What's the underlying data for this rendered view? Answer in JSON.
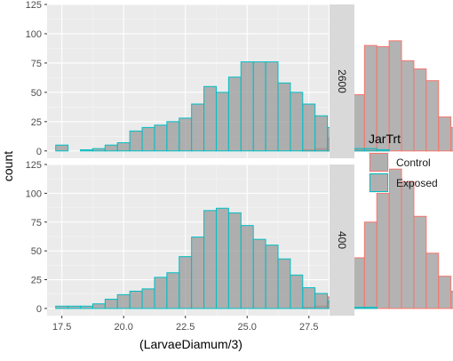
{
  "chart_data": {
    "type": "histogram",
    "xlabel": "(LarvaeDiamum/3)",
    "ylabel": "count",
    "xlim": [
      16.9,
      28.3
    ],
    "ylim": [
      -6.25,
      125
    ],
    "x_ticks": [
      17.5,
      20.0,
      22.5,
      25.0,
      27.5
    ],
    "x_tick_labels": [
      "17.5",
      "20.0",
      "22.5",
      "25.0",
      "27.5"
    ],
    "y_ticks": [
      0,
      25,
      50,
      75,
      100,
      125
    ],
    "y_tick_labels": [
      "0",
      "25",
      "50",
      "75",
      "100",
      "125"
    ],
    "bin_start": 17.25,
    "bin_width": 0.5,
    "panel_bg": "#ebebeb",
    "strip_bg": "#d9d9d9",
    "bar_fill": "#999999",
    "legend": {
      "title": "JarTrt",
      "entries": [
        {
          "label": "Control",
          "color": "#f8766d"
        },
        {
          "label": "Exposed",
          "color": "#00bfc4"
        }
      ]
    },
    "panels": [
      {
        "strip": "2600",
        "series": [
          {
            "name": "Control",
            "values": [
              0,
              0,
              0,
              0,
              0,
              0,
              0,
              0,
              0,
              0,
              0,
              0,
              0,
              0,
              0,
              0,
              0,
              0,
              0,
              0,
              1,
              2,
              11,
              13,
              48,
              90,
              89,
              94,
              77,
              70,
              60,
              29,
              20,
              7,
              1,
              1
            ]
          },
          {
            "name": "Exposed",
            "values": [
              5,
              0,
              1,
              2,
              5,
              7,
              17,
              20,
              22,
              25,
              28,
              40,
              55,
              50,
              63,
              76,
              76,
              76,
              58,
              50,
              40,
              30,
              20,
              15,
              2,
              2,
              1,
              0,
              0,
              0,
              0,
              0,
              0,
              0,
              0,
              0
            ]
          }
        ]
      },
      {
        "strip": "400",
        "series": [
          {
            "name": "Control",
            "values": [
              0,
              0,
              0,
              0,
              0,
              0,
              0,
              0,
              0,
              0,
              0,
              0,
              0,
              0,
              0,
              0,
              0,
              0,
              0,
              0,
              1,
              2,
              10,
              16,
              44,
              75,
              100,
              121,
              110,
              80,
              48,
              28,
              15,
              8,
              1,
              0
            ]
          },
          {
            "name": "Exposed",
            "values": [
              2,
              2,
              2,
              4,
              8,
              12,
              15,
              17,
              27,
              31,
              45,
              62,
              85,
              87,
              83,
              72,
              60,
              55,
              43,
              29,
              18,
              13,
              6,
              3,
              1,
              1,
              0,
              0,
              0,
              0,
              0,
              0,
              0,
              0,
              0,
              0
            ]
          }
        ]
      }
    ]
  }
}
